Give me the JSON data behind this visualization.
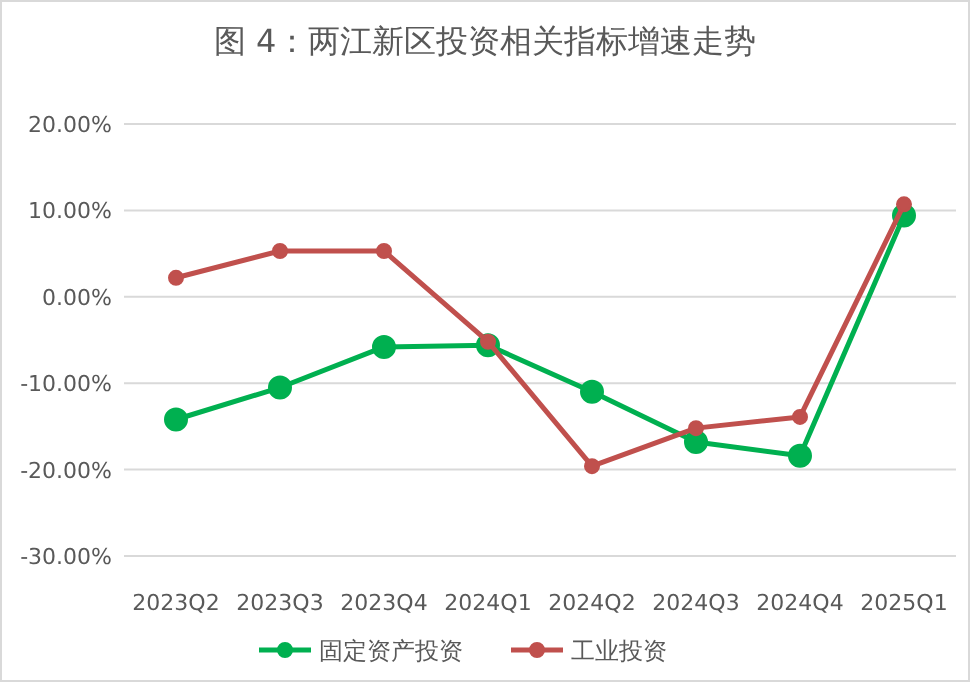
{
  "chart_data": {
    "type": "line",
    "title": "图 4：两江新区投资相关指标增速走势",
    "categories": [
      "2023Q2",
      "2023Q3",
      "2023Q4",
      "2024Q1",
      "2024Q2",
      "2024Q3",
      "2024Q4",
      "2025Q1"
    ],
    "series": [
      {
        "name": "固定资产投资",
        "color": "#00b050",
        "values": [
          -14.2,
          -10.5,
          -5.8,
          -5.6,
          -11.0,
          -16.8,
          -18.4,
          9.4
        ]
      },
      {
        "name": "工业投资",
        "color": "#c0504d",
        "values": [
          2.2,
          5.3,
          5.3,
          -5.2,
          -19.6,
          -15.2,
          -13.9,
          10.7
        ]
      }
    ],
    "ylim": [
      -30,
      20
    ],
    "yticks": [
      {
        "value": -30,
        "label": "-30.00%"
      },
      {
        "value": -20,
        "label": "-20.00%"
      },
      {
        "value": -10,
        "label": "-10.00%"
      },
      {
        "value": 0,
        "label": "0.00%"
      },
      {
        "value": 10,
        "label": "10.00%"
      },
      {
        "value": 20,
        "label": "20.00%"
      }
    ],
    "grid": "y",
    "legend": "bottom",
    "marker": "circle"
  }
}
